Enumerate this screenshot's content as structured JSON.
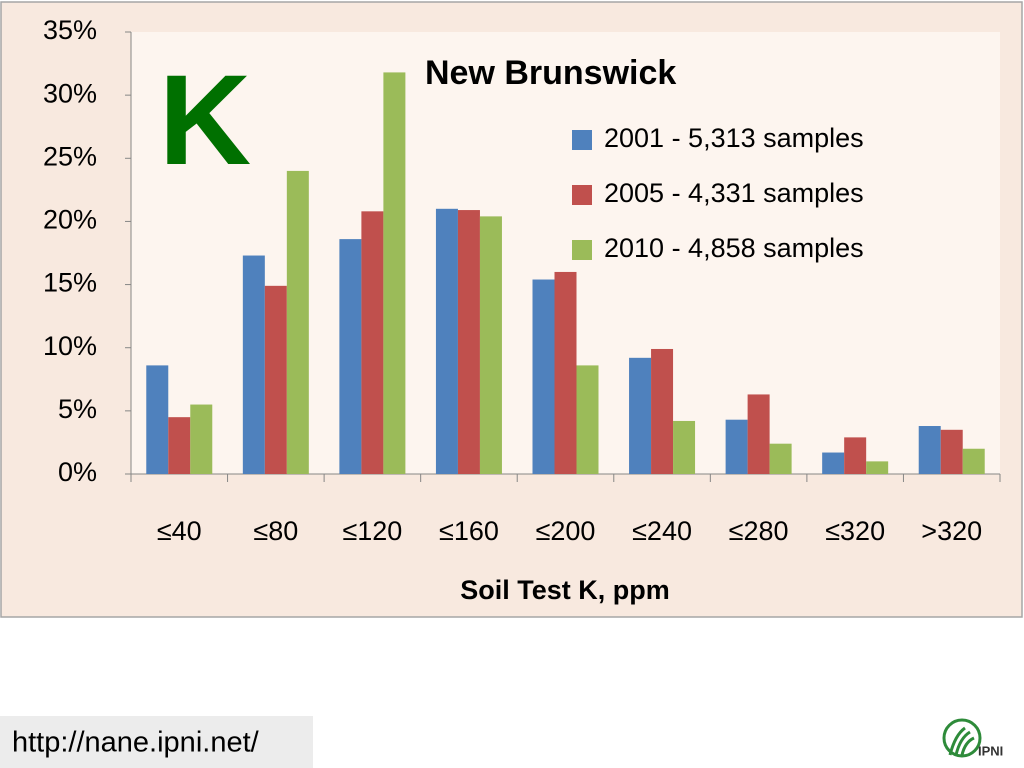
{
  "chart_data": {
    "type": "bar",
    "title": "New Brunswick",
    "annotation": "K",
    "x_label": "Soil Test K, ppm",
    "categories": [
      "≤40",
      "≤80",
      "≤120",
      "≤160",
      "≤200",
      "≤240",
      "≤280",
      "≤320",
      ">320"
    ],
    "series": [
      {
        "name": "2001 - 5,313 samples",
        "color": "#4f81bd",
        "values": [
          8.6,
          17.3,
          18.6,
          21.0,
          15.4,
          9.2,
          4.3,
          1.7,
          3.8
        ]
      },
      {
        "name": "2005 - 4,331 samples",
        "color": "#c0504d",
        "values": [
          4.5,
          14.9,
          20.8,
          20.9,
          16.0,
          9.9,
          6.3,
          2.9,
          3.5
        ]
      },
      {
        "name": "2010 - 4,858 samples",
        "color": "#9bbb59",
        "values": [
          5.5,
          24.0,
          31.8,
          20.4,
          8.6,
          4.2,
          2.4,
          1.0,
          2.0
        ]
      }
    ],
    "ylim": [
      0,
      35
    ],
    "yticks": [
      {
        "value": 0,
        "label": "0%"
      },
      {
        "value": 5,
        "label": "5%"
      },
      {
        "value": 10,
        "label": "10%"
      },
      {
        "value": 15,
        "label": "15%"
      },
      {
        "value": 20,
        "label": "20%"
      },
      {
        "value": 25,
        "label": "25%"
      },
      {
        "value": 30,
        "label": "30%"
      },
      {
        "value": 35,
        "label": "35%"
      }
    ],
    "grid": false,
    "legend": "top-right"
  },
  "footer": {
    "url": "http://nane.ipni.net/",
    "logo": "IPNI"
  }
}
